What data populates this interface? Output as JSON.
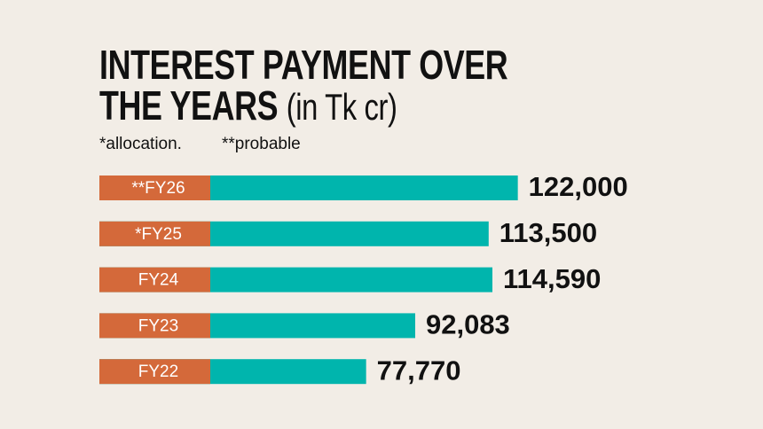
{
  "chart_data": {
    "type": "bar",
    "orientation": "horizontal",
    "title": "INTEREST PAYMENT OVER THE YEARS",
    "unit": "(in Tk cr)",
    "notes": [
      "*allocation.",
      "**probable"
    ],
    "categories": [
      "**FY26",
      "*FY25",
      "FY24",
      "FY23",
      "FY22"
    ],
    "values": [
      122000,
      113500,
      114590,
      92083,
      77770
    ],
    "value_labels": [
      "122,000",
      "113,500",
      "114,590",
      "92,083",
      "77,770"
    ],
    "color": "#00b5ad",
    "label_color": "#d4693a"
  }
}
